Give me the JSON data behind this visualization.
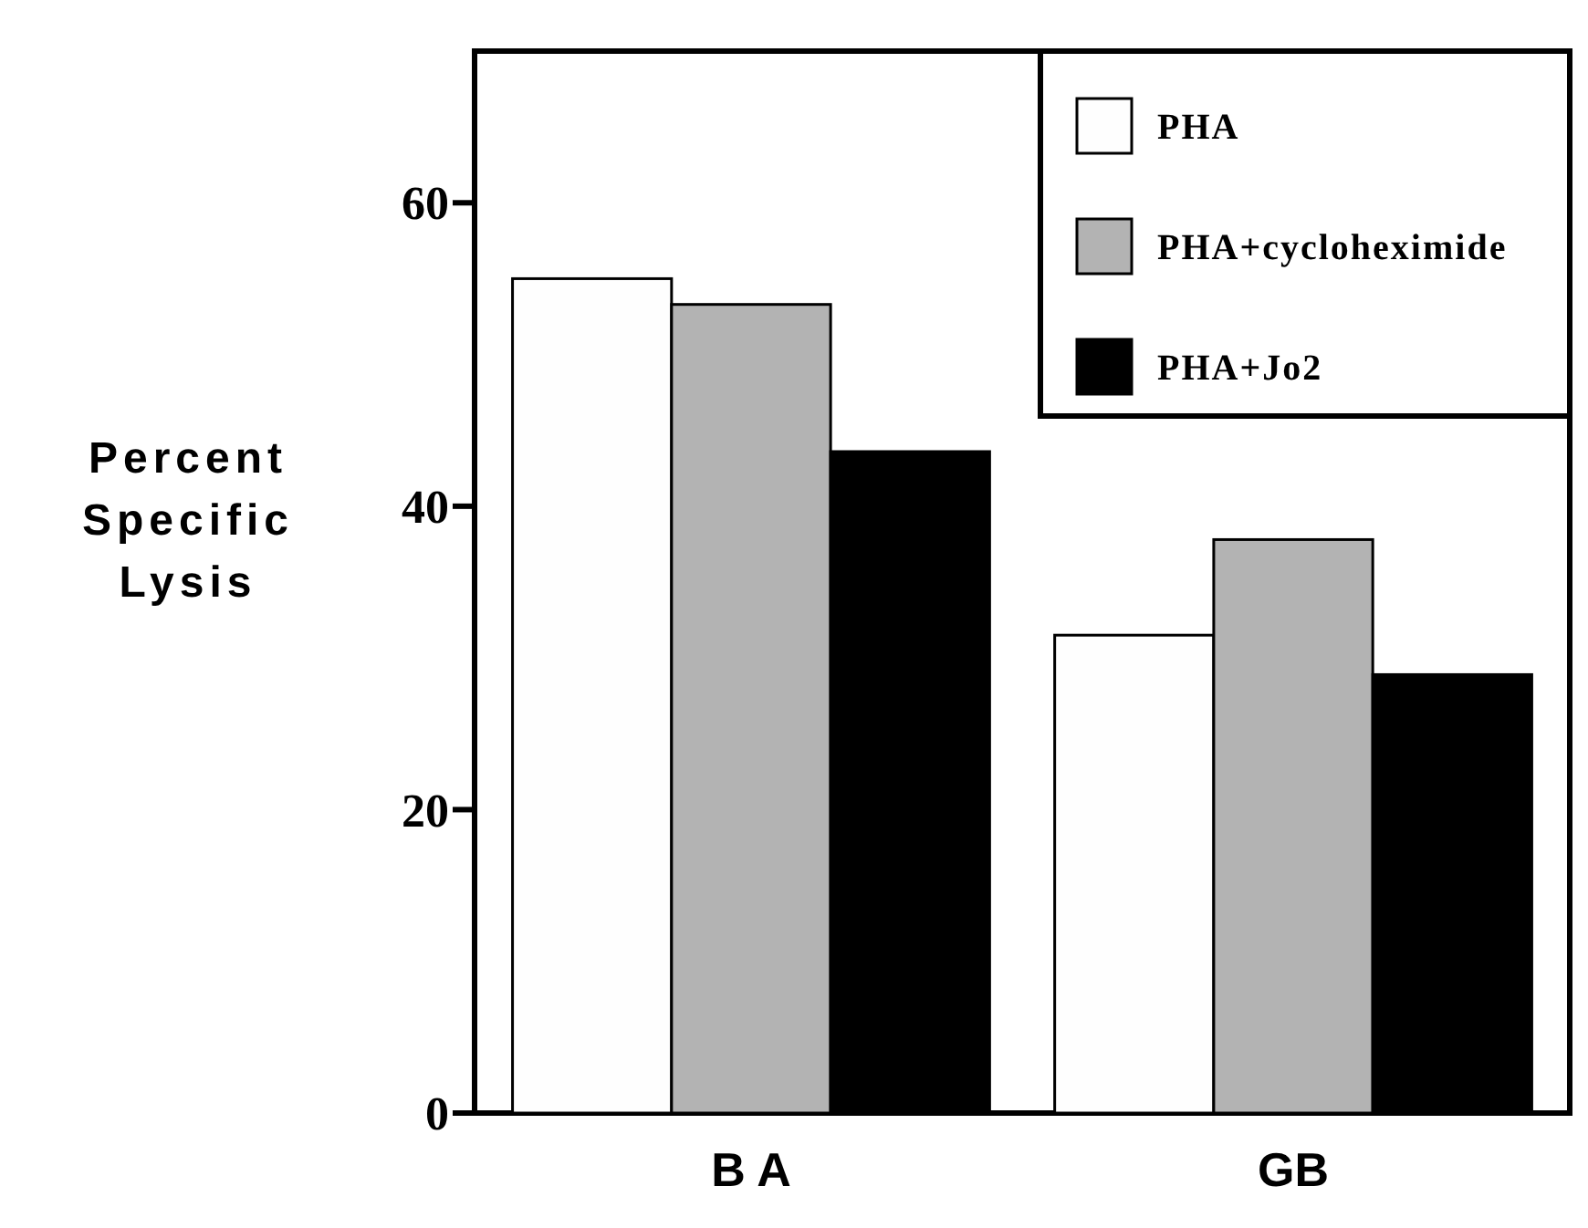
{
  "chart_data": {
    "type": "bar",
    "ylabel": "Percent Specific Lysis",
    "categories": [
      "B A",
      "GB"
    ],
    "series": [
      {
        "name": "PHA",
        "color": "#fefefe",
        "values": [
          55,
          31.5
        ]
      },
      {
        "name": "PHA+cycloheximide",
        "color": "#b3b3b3",
        "values": [
          53.3,
          37.8
        ]
      },
      {
        "name": "PHA+Jo2",
        "color": "#000000",
        "values": [
          43.6,
          28.9
        ]
      }
    ],
    "ylim": [
      0,
      70
    ],
    "yticks": [
      0,
      20,
      40,
      60
    ],
    "legend": "top right",
    "grid": false
  }
}
